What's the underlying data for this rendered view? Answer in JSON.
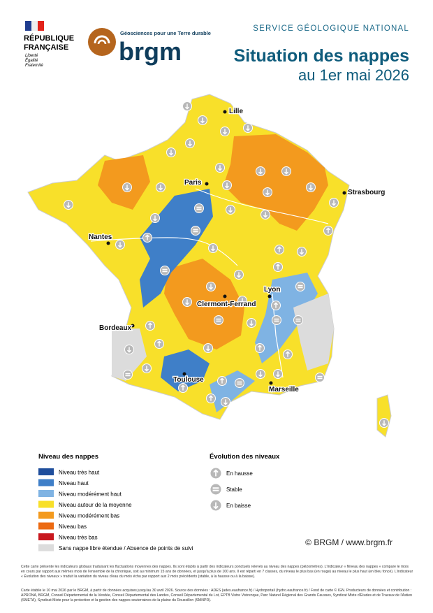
{
  "header": {
    "republique": [
      "RÉPUBLIQUE",
      "FRANÇAISE"
    ],
    "motto": [
      "Liberté",
      "Égalité",
      "Fraternité"
    ],
    "tagline": "Géosciences pour une Terre durable",
    "logo": "brgm",
    "service": "SERVICE GÉOLOGIQUE NATIONAL",
    "title": "Situation des nappes",
    "subtitle": "au 1er mai 2026"
  },
  "cities": [
    "Lille",
    "Paris",
    "Strasbourg",
    "Nantes",
    "Lyon",
    "Clermont-Ferrand",
    "Bordeaux",
    "Toulouse",
    "Marseille"
  ],
  "legend_levels": {
    "title": "Niveau des nappes",
    "items": [
      {
        "label": "Niveau très haut",
        "color": "#1f4e9c"
      },
      {
        "label": "Niveau haut",
        "color": "#3f7fc8"
      },
      {
        "label": "Niveau modérément haut",
        "color": "#7fb3e3"
      },
      {
        "label": "Niveau autour de la moyenne",
        "color": "#f8e02a"
      },
      {
        "label": "Niveau modérément bas",
        "color": "#f39a1e"
      },
      {
        "label": "Niveau bas",
        "color": "#ec6a12"
      },
      {
        "label": "Niveau très bas",
        "color": "#c8171e"
      },
      {
        "label": "Sans nappe libre étendue / Absence de points de suivi",
        "color": "#dcdcdc"
      }
    ]
  },
  "legend_evolution": {
    "title": "Évolution des niveaux",
    "items": [
      "En hausse",
      "Stable",
      "En baisse"
    ]
  },
  "credit": "© BRGM / www.brgm.fr",
  "notes": [
    "Cette carte présente les indicateurs globaux traduisant les fluctuations moyennes des nappes. Ils sont établis à partir des indicateurs ponctuels relevés au niveau des nappes (piézomètres). L'indicateur « Niveau des nappes » compare le mois en cours par rapport aux mêmes mois de l'ensemble de la chronique, soit au minimum 15 ans de données, et jusqu'à plus de 100 ans. Il est réparti en 7 classes, du niveau le plus bas (en rouge) au niveau le plus haut (en bleu foncé). L'indicateur « Évolution des niveaux » traduit la variation du niveau d'eau du mois échu par rapport aux 2 mois précédents (stable, à la hausse ou à la baisse).",
    "Carte établie le 10 mai 2026 par le BRGM, à partir de données acquises jusqu'au 30 avril 2026. Source des données : ADES (ades.eaufrance.fr) / Hydroportail (hydro.eaufrance.fr) / Fond de carte © IGN. Producteurs de données et contribution : APRONA, BRGM, Conseil Départemental de la Vendée, Conseil Départemental des Landes, Conseil Départemental du Lot, EPTB Vistre Vistrenque, Parc Naturel Régional des Grands Causses, Syndicat Mixte d'Etudes et de Travaux de l'Astien (SMETA), Syndicat Mixte pour la protection et la gestion des nappes souterraines de la plaine du Roussillon (SMNPR)."
  ]
}
